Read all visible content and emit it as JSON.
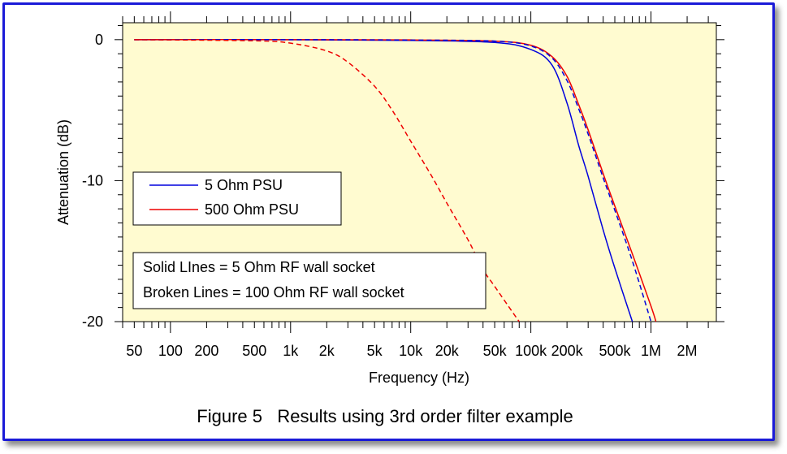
{
  "caption": "Figure 5   Results using 3rd order filter example",
  "chart_data": {
    "type": "line",
    "title": "",
    "xlabel": "Frequency (Hz)",
    "ylabel": "Attenuation (dB)",
    "xscale": "log",
    "xlim": [
      40,
      3500000
    ],
    "ylim": [
      -20,
      1.2
    ],
    "x_ticks": [
      {
        "value": 50,
        "label": "50"
      },
      {
        "value": 100,
        "label": "100"
      },
      {
        "value": 200,
        "label": "200"
      },
      {
        "value": 500,
        "label": "500"
      },
      {
        "value": 1000,
        "label": "1k"
      },
      {
        "value": 2000,
        "label": "2k"
      },
      {
        "value": 5000,
        "label": "5k"
      },
      {
        "value": 10000,
        "label": "10k"
      },
      {
        "value": 20000,
        "label": "20k"
      },
      {
        "value": 50000,
        "label": "50k"
      },
      {
        "value": 100000,
        "label": "100k"
      },
      {
        "value": 200000,
        "label": "200k"
      },
      {
        "value": 500000,
        "label": "500k"
      },
      {
        "value": 1000000,
        "label": "1M"
      },
      {
        "value": 2000000,
        "label": "2M"
      }
    ],
    "y_ticks": [
      {
        "value": 0,
        "label": "0"
      },
      {
        "value": -10,
        "label": "-10"
      },
      {
        "value": -20,
        "label": "-20"
      }
    ],
    "grid": false,
    "background_color": "#fffbd0",
    "legend": {
      "placement": "middle-left",
      "entries": [
        {
          "label": "5 Ohm PSU",
          "color": "#0000dd"
        },
        {
          "label": "500 Ohm PSU",
          "color": "#ee0000"
        }
      ]
    },
    "annotations": [
      "Solid LInes = 5 Ohm RF wall socket",
      "Broken Lines = 100 Ohm RF wall socket"
    ],
    "series": [
      {
        "color": "#0000dd",
        "style": "solid",
        "x": [
          50,
          1000,
          10000,
          50000,
          100000,
          150000,
          200000,
          250000,
          300000,
          400000,
          500000,
          700000
        ],
        "y": [
          0,
          0,
          -0.05,
          -0.2,
          -0.7,
          -1.8,
          -4.5,
          -7.5,
          -9.7,
          -13.5,
          -16.2,
          -20
        ]
      },
      {
        "color": "#ee0000",
        "style": "solid",
        "x": [
          50,
          1000,
          10000,
          50000,
          100000,
          150000,
          200000,
          250000,
          300000,
          400000,
          500000,
          700000,
          1000000,
          1100000
        ],
        "y": [
          0,
          0,
          -0.02,
          -0.1,
          -0.4,
          -1.2,
          -2.6,
          -4.6,
          -6.4,
          -9.5,
          -11.8,
          -15.2,
          -18.9,
          -20
        ]
      },
      {
        "color": "#0000dd",
        "style": "dashed",
        "x": [
          50,
          1000,
          10000,
          50000,
          100000,
          150000,
          200000,
          250000,
          300000,
          400000,
          500000,
          700000,
          1000000
        ],
        "y": [
          0,
          0,
          -0.03,
          -0.1,
          -0.45,
          -1.3,
          -2.9,
          -4.9,
          -6.7,
          -9.8,
          -12.1,
          -15.7,
          -20
        ]
      },
      {
        "color": "#ee0000",
        "style": "dashed",
        "x": [
          50,
          500,
          1000,
          2000,
          3000,
          5000,
          7000,
          10000,
          15000,
          20000,
          30000,
          40000,
          50000,
          70000,
          80000
        ],
        "y": [
          0,
          -0.08,
          -0.25,
          -0.8,
          -1.6,
          -3.3,
          -5.0,
          -7.2,
          -9.7,
          -11.6,
          -14.2,
          -16.3,
          -17.5,
          -19.3,
          -20
        ]
      }
    ]
  }
}
